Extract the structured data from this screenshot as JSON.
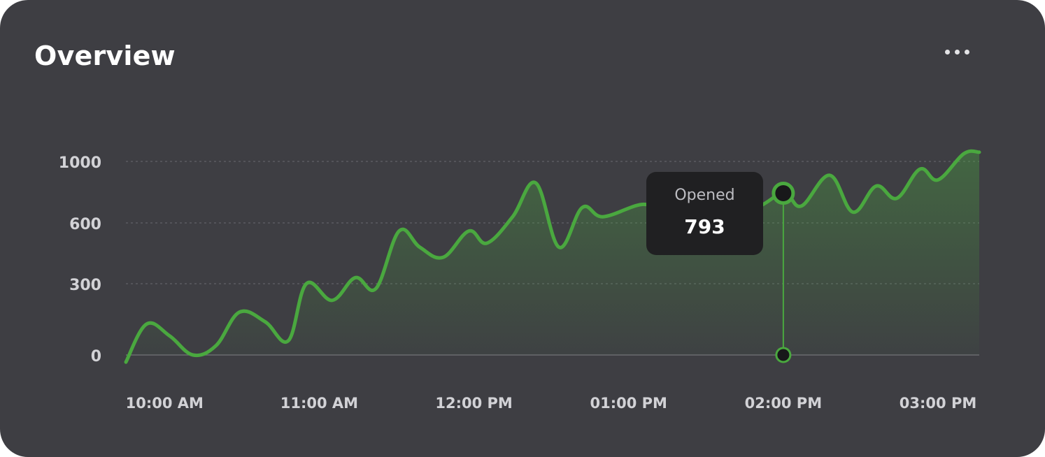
{
  "card": {
    "title": "Overview",
    "menu_icon": "more-horizontal-icon"
  },
  "tooltip": {
    "label": "Opened",
    "value": "793"
  },
  "colors": {
    "background": "#3e3e43",
    "line": "#4aa83f",
    "tooltip_bg": "#202022",
    "text": "#ffffff",
    "axis_text": "#d2d2d6"
  },
  "chart_data": {
    "type": "area",
    "y_ticks": [
      "0",
      "300",
      "600",
      "1000"
    ],
    "x_ticks": [
      "10:00 AM",
      "11:00 AM",
      "12:00 PM",
      "01:00 PM",
      "02:00 PM",
      "03:00 PM"
    ],
    "xlabel": "",
    "ylabel": "",
    "grid": "horizontal dashed",
    "highlight_index": 26,
    "series": [
      {
        "x": [
          "09:45 AM",
          "09:53 AM",
          "10:02 AM",
          "10:11 AM",
          "10:20 AM",
          "10:29 AM",
          "10:39 AM",
          "10:48 AM",
          "10:55 AM",
          "11:05 AM",
          "11:14 AM",
          "11:22 AM",
          "11:31 AM",
          "11:39 AM",
          "11:48 AM",
          "11:58 AM",
          "12:05 PM",
          "12:15 PM",
          "12:24 PM",
          "12:33 PM",
          "12:42 PM",
          "12:50 PM",
          "01:05 PM",
          "01:13 PM",
          "01:23 PM",
          "01:47 PM",
          "02:00 PM",
          "02:07 PM",
          "02:18 PM",
          "02:27 PM",
          "02:36 PM",
          "02:44 PM",
          "02:53 PM",
          "03:00 PM",
          "03:10 PM",
          "03:16 PM"
        ],
        "values": [
          -30,
          130,
          80,
          0,
          40,
          180,
          140,
          60,
          300,
          230,
          330,
          280,
          560,
          480,
          430,
          560,
          500,
          640,
          860,
          480,
          700,
          640,
          720,
          680,
          700,
          690,
          793,
          710,
          910,
          670,
          840,
          760,
          950,
          880,
          1050,
          1060
        ]
      }
    ]
  }
}
